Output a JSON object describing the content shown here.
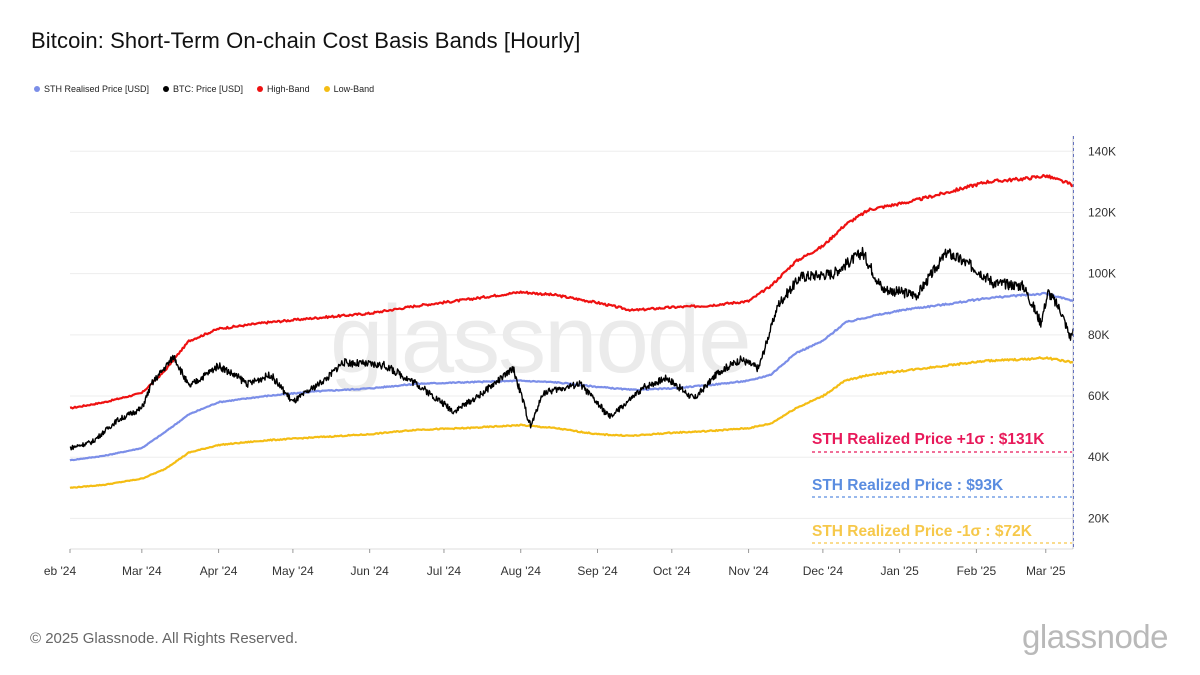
{
  "title": "Bitcoin: Short-Term On-chain Cost Basis Bands [Hourly]",
  "legend": [
    {
      "label": "STH Realised Price [USD]",
      "color": "#7b8ee8"
    },
    {
      "label": "BTC: Price [USD]",
      "color": "#000000"
    },
    {
      "label": "High-Band",
      "color": "#ee1111"
    },
    {
      "label": "Low-Band",
      "color": "#f4bd14"
    }
  ],
  "watermark": "glassnode",
  "footer": {
    "copyright": "© 2025 Glassnode. All Rights Reserved.",
    "logo": "glassnode"
  },
  "annotations": [
    {
      "text": "STH Realized Price +1σ : $131K",
      "color": "#e8195a"
    },
    {
      "text": "STH Realized Price  : $93K",
      "color": "#5b8de0"
    },
    {
      "text": "STH Realized Price -1σ : $72K",
      "color": "#f6c84a"
    }
  ],
  "chart_data": {
    "type": "line",
    "x_tick_labels": [
      "eb '24",
      "Mar '24",
      "Apr '24",
      "May '24",
      "Jun '24",
      "Jul '24",
      "Aug '24",
      "Sep '24",
      "Oct '24",
      "Nov '24",
      "Dec '24",
      "Jan '25",
      "Feb '25",
      "Mar '25"
    ],
    "y_tick_labels": [
      "20K",
      "40K",
      "60K",
      "80K",
      "100K",
      "120K",
      "140K"
    ],
    "y_ticks": [
      20000,
      40000,
      60000,
      80000,
      100000,
      120000,
      140000
    ],
    "ylim": [
      10000,
      145000
    ],
    "x_months": [
      "2024-02",
      "2024-03",
      "2024-04",
      "2024-05",
      "2024-06",
      "2024-07",
      "2024-08",
      "2024-09",
      "2024-10",
      "2024-11",
      "2024-12",
      "2025-01",
      "2025-02",
      "2025-03"
    ],
    "x_range": [
      "2024-02-01",
      "2025-03-12"
    ],
    "series": [
      {
        "name": "High-Band",
        "color": "#ee1111",
        "points": [
          [
            "2024-02-01",
            56000
          ],
          [
            "2024-02-15",
            58000
          ],
          [
            "2024-03-01",
            61000
          ],
          [
            "2024-03-10",
            68000
          ],
          [
            "2024-03-20",
            78000
          ],
          [
            "2024-04-01",
            82000
          ],
          [
            "2024-04-20",
            84000
          ],
          [
            "2024-05-10",
            85500
          ],
          [
            "2024-06-01",
            87000
          ],
          [
            "2024-06-20",
            89500
          ],
          [
            "2024-07-10",
            91500
          ],
          [
            "2024-08-01",
            94000
          ],
          [
            "2024-08-15",
            93000
          ],
          [
            "2024-09-01",
            90500
          ],
          [
            "2024-09-15",
            88000
          ],
          [
            "2024-10-01",
            89000
          ],
          [
            "2024-10-15",
            89500
          ],
          [
            "2024-11-01",
            91000
          ],
          [
            "2024-11-10",
            96000
          ],
          [
            "2024-11-20",
            104000
          ],
          [
            "2024-12-01",
            109000
          ],
          [
            "2024-12-10",
            116000
          ],
          [
            "2024-12-20",
            121000
          ],
          [
            "2025-01-05",
            123500
          ],
          [
            "2025-01-20",
            126500
          ],
          [
            "2025-02-05",
            130000
          ],
          [
            "2025-02-20",
            131000
          ],
          [
            "2025-03-01",
            132000
          ],
          [
            "2025-03-12",
            129000
          ]
        ]
      },
      {
        "name": "STH Realised Price [USD]",
        "color": "#7b8ee8",
        "points": [
          [
            "2024-02-01",
            39000
          ],
          [
            "2024-02-15",
            40500
          ],
          [
            "2024-03-01",
            43000
          ],
          [
            "2024-03-10",
            48000
          ],
          [
            "2024-03-20",
            54000
          ],
          [
            "2024-04-01",
            58000
          ],
          [
            "2024-04-20",
            60000
          ],
          [
            "2024-05-10",
            61500
          ],
          [
            "2024-06-01",
            62500
          ],
          [
            "2024-06-20",
            64000
          ],
          [
            "2024-07-10",
            64500
          ],
          [
            "2024-08-01",
            65000
          ],
          [
            "2024-08-15",
            64500
          ],
          [
            "2024-09-01",
            63000
          ],
          [
            "2024-09-15",
            62000
          ],
          [
            "2024-10-01",
            62500
          ],
          [
            "2024-10-15",
            63500
          ],
          [
            "2024-11-01",
            65000
          ],
          [
            "2024-11-10",
            67000
          ],
          [
            "2024-11-20",
            74000
          ],
          [
            "2024-12-01",
            78000
          ],
          [
            "2024-12-10",
            84000
          ],
          [
            "2024-12-20",
            86000
          ],
          [
            "2025-01-05",
            88500
          ],
          [
            "2025-01-20",
            90000
          ],
          [
            "2025-02-05",
            92000
          ],
          [
            "2025-02-20",
            93000
          ],
          [
            "2025-03-01",
            93500
          ],
          [
            "2025-03-12",
            91000
          ]
        ]
      },
      {
        "name": "Low-Band",
        "color": "#f4bd14",
        "points": [
          [
            "2024-02-01",
            30000
          ],
          [
            "2024-02-15",
            31000
          ],
          [
            "2024-03-01",
            33000
          ],
          [
            "2024-03-10",
            36000
          ],
          [
            "2024-03-20",
            41500
          ],
          [
            "2024-04-01",
            44000
          ],
          [
            "2024-04-20",
            45500
          ],
          [
            "2024-05-10",
            46500
          ],
          [
            "2024-06-01",
            47500
          ],
          [
            "2024-06-20",
            49000
          ],
          [
            "2024-07-10",
            49500
          ],
          [
            "2024-08-01",
            50500
          ],
          [
            "2024-08-15",
            49500
          ],
          [
            "2024-09-01",
            47500
          ],
          [
            "2024-09-15",
            47000
          ],
          [
            "2024-10-01",
            48000
          ],
          [
            "2024-10-15",
            48500
          ],
          [
            "2024-11-01",
            49500
          ],
          [
            "2024-11-10",
            51000
          ],
          [
            "2024-11-20",
            56000
          ],
          [
            "2024-12-01",
            60000
          ],
          [
            "2024-12-10",
            65000
          ],
          [
            "2024-12-20",
            67000
          ],
          [
            "2025-01-05",
            68500
          ],
          [
            "2025-01-20",
            70000
          ],
          [
            "2025-02-05",
            71500
          ],
          [
            "2025-02-20",
            72000
          ],
          [
            "2025-03-01",
            72500
          ],
          [
            "2025-03-12",
            71000
          ]
        ]
      },
      {
        "name": "BTC: Price [USD]",
        "color": "#000000",
        "points": [
          [
            "2024-02-01",
            43000
          ],
          [
            "2024-02-10",
            45000
          ],
          [
            "2024-02-20",
            52000
          ],
          [
            "2024-03-01",
            56000
          ],
          [
            "2024-03-05",
            64000
          ],
          [
            "2024-03-14",
            73000
          ],
          [
            "2024-03-20",
            63000
          ],
          [
            "2024-04-01",
            70000
          ],
          [
            "2024-04-13",
            64000
          ],
          [
            "2024-04-22",
            67000
          ],
          [
            "2024-05-01",
            58000
          ],
          [
            "2024-05-15",
            66000
          ],
          [
            "2024-05-21",
            71000
          ],
          [
            "2024-06-07",
            70000
          ],
          [
            "2024-06-20",
            64000
          ],
          [
            "2024-07-05",
            55000
          ],
          [
            "2024-07-15",
            60000
          ],
          [
            "2024-07-29",
            69000
          ],
          [
            "2024-08-05",
            50000
          ],
          [
            "2024-08-10",
            61000
          ],
          [
            "2024-08-25",
            64000
          ],
          [
            "2024-09-06",
            53000
          ],
          [
            "2024-09-20",
            63000
          ],
          [
            "2024-09-29",
            66000
          ],
          [
            "2024-10-10",
            59000
          ],
          [
            "2024-10-20",
            68000
          ],
          [
            "2024-10-29",
            72000
          ],
          [
            "2024-11-05",
            69000
          ],
          [
            "2024-11-13",
            90000
          ],
          [
            "2024-11-22",
            99000
          ],
          [
            "2024-12-05",
            100000
          ],
          [
            "2024-12-17",
            107000
          ],
          [
            "2024-12-25",
            95000
          ],
          [
            "2025-01-08",
            93000
          ],
          [
            "2025-01-20",
            107000
          ],
          [
            "2025-01-31",
            102000
          ],
          [
            "2025-02-08",
            97000
          ],
          [
            "2025-02-20",
            96000
          ],
          [
            "2025-02-27",
            84000
          ],
          [
            "2025-03-02",
            94000
          ],
          [
            "2025-03-07",
            88000
          ],
          [
            "2025-03-11",
            79000
          ],
          [
            "2025-03-12",
            82000
          ]
        ]
      }
    ],
    "grid": true
  }
}
